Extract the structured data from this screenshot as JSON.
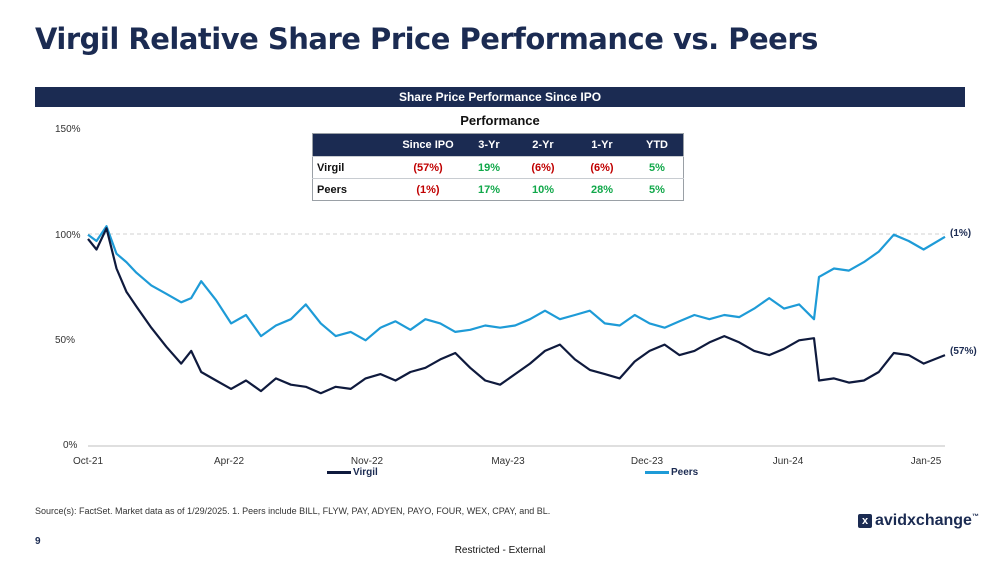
{
  "slide": {
    "title": "Virgil Relative Share Price Performance vs. Peers",
    "section_bar": "Share Price Performance Since IPO",
    "page_number": "9",
    "classification": "Restricted - External",
    "source": "Source(s): FactSet. Market data as of 1/29/2025. 1. Peers include BILL, FLYW, PAY, ADYEN, PAYO, FOUR, WEX, CPAY, and BL.",
    "logo_text": "avidxchange",
    "logo_mark": "x",
    "logo_trademark": "™"
  },
  "perf_table": {
    "title": "Performance",
    "headers": [
      "",
      "Since IPO",
      "3-Yr",
      "2-Yr",
      "1-Yr",
      "YTD"
    ],
    "rows": [
      {
        "label": "Virgil",
        "cells": [
          "(57%)",
          "19%",
          "(6%)",
          "(6%)",
          "5%"
        ]
      },
      {
        "label": "Peers",
        "cells": [
          "(1%)",
          "17%",
          "10%",
          "28%",
          "5%"
        ]
      }
    ],
    "negative_color": "#c00000",
    "positive_color": "#11a84a"
  },
  "chart_data": {
    "type": "line",
    "title": "",
    "xlabel": "",
    "ylabel": "",
    "ylim": [
      0,
      150
    ],
    "y_ticks": [
      "0%",
      "50%",
      "100%",
      "150%"
    ],
    "x_ticks": [
      "Oct-21",
      "Apr-22",
      "Nov-22",
      "May-23",
      "Dec-23",
      "Jun-24",
      "Jan-25"
    ],
    "legend_placement": "bottom",
    "grid": "dashed line at 100%",
    "series": [
      {
        "name": "Virgil",
        "color": "#0f1a3d",
        "end_label": "(57%)",
        "points": [
          [
            "2021-10-13",
            98
          ],
          [
            "2021-10-25",
            93
          ],
          [
            "2021-11-08",
            103
          ],
          [
            "2021-11-22",
            84
          ],
          [
            "2021-12-06",
            73
          ],
          [
            "2021-12-20",
            66
          ],
          [
            "2022-01-10",
            56
          ],
          [
            "2022-01-31",
            47
          ],
          [
            "2022-02-21",
            39
          ],
          [
            "2022-03-07",
            45
          ],
          [
            "2022-03-21",
            35
          ],
          [
            "2022-04-11",
            31
          ],
          [
            "2022-05-02",
            27
          ],
          [
            "2022-05-23",
            31
          ],
          [
            "2022-06-13",
            26
          ],
          [
            "2022-07-04",
            32
          ],
          [
            "2022-07-25",
            29
          ],
          [
            "2022-08-15",
            28
          ],
          [
            "2022-09-05",
            25
          ],
          [
            "2022-09-26",
            28
          ],
          [
            "2022-10-17",
            27
          ],
          [
            "2022-11-07",
            32
          ],
          [
            "2022-11-28",
            34
          ],
          [
            "2022-12-19",
            31
          ],
          [
            "2023-01-09",
            35
          ],
          [
            "2023-01-30",
            37
          ],
          [
            "2023-02-20",
            41
          ],
          [
            "2023-03-13",
            44
          ],
          [
            "2023-04-03",
            37
          ],
          [
            "2023-04-24",
            31
          ],
          [
            "2023-05-15",
            29
          ],
          [
            "2023-06-05",
            34
          ],
          [
            "2023-06-26",
            39
          ],
          [
            "2023-07-17",
            45
          ],
          [
            "2023-08-07",
            48
          ],
          [
            "2023-08-28",
            41
          ],
          [
            "2023-09-18",
            36
          ],
          [
            "2023-10-09",
            34
          ],
          [
            "2023-10-30",
            32
          ],
          [
            "2023-11-20",
            40
          ],
          [
            "2023-12-11",
            45
          ],
          [
            "2024-01-01",
            48
          ],
          [
            "2024-01-22",
            43
          ],
          [
            "2024-02-12",
            45
          ],
          [
            "2024-03-04",
            49
          ],
          [
            "2024-03-25",
            52
          ],
          [
            "2024-04-15",
            49
          ],
          [
            "2024-05-06",
            45
          ],
          [
            "2024-05-27",
            43
          ],
          [
            "2024-06-17",
            46
          ],
          [
            "2024-07-08",
            50
          ],
          [
            "2024-07-29",
            51
          ],
          [
            "2024-08-05",
            31
          ],
          [
            "2024-08-26",
            32
          ],
          [
            "2024-09-16",
            30
          ],
          [
            "2024-10-07",
            31
          ],
          [
            "2024-10-28",
            35
          ],
          [
            "2024-11-18",
            44
          ],
          [
            "2024-12-09",
            43
          ],
          [
            "2024-12-30",
            39
          ],
          [
            "2025-01-29",
            43
          ]
        ]
      },
      {
        "name": "Peers",
        "color": "#1e9bd7",
        "end_label": "(1%)",
        "points": [
          [
            "2021-10-13",
            100
          ],
          [
            "2021-10-25",
            97
          ],
          [
            "2021-11-08",
            104
          ],
          [
            "2021-11-22",
            91
          ],
          [
            "2021-12-06",
            87
          ],
          [
            "2021-12-20",
            82
          ],
          [
            "2022-01-10",
            76
          ],
          [
            "2022-01-31",
            72
          ],
          [
            "2022-02-21",
            68
          ],
          [
            "2022-03-07",
            70
          ],
          [
            "2022-03-21",
            78
          ],
          [
            "2022-04-11",
            69
          ],
          [
            "2022-05-02",
            58
          ],
          [
            "2022-05-23",
            62
          ],
          [
            "2022-06-13",
            52
          ],
          [
            "2022-07-04",
            57
          ],
          [
            "2022-07-25",
            60
          ],
          [
            "2022-08-15",
            67
          ],
          [
            "2022-09-05",
            58
          ],
          [
            "2022-09-26",
            52
          ],
          [
            "2022-10-17",
            54
          ],
          [
            "2022-11-07",
            50
          ],
          [
            "2022-11-28",
            56
          ],
          [
            "2022-12-19",
            59
          ],
          [
            "2023-01-09",
            55
          ],
          [
            "2023-01-30",
            60
          ],
          [
            "2023-02-20",
            58
          ],
          [
            "2023-03-13",
            54
          ],
          [
            "2023-04-03",
            55
          ],
          [
            "2023-04-24",
            57
          ],
          [
            "2023-05-15",
            56
          ],
          [
            "2023-06-05",
            57
          ],
          [
            "2023-06-26",
            60
          ],
          [
            "2023-07-17",
            64
          ],
          [
            "2023-08-07",
            60
          ],
          [
            "2023-08-28",
            62
          ],
          [
            "2023-09-18",
            64
          ],
          [
            "2023-10-09",
            58
          ],
          [
            "2023-10-30",
            57
          ],
          [
            "2023-11-20",
            62
          ],
          [
            "2023-12-11",
            58
          ],
          [
            "2024-01-01",
            56
          ],
          [
            "2024-01-22",
            59
          ],
          [
            "2024-02-12",
            62
          ],
          [
            "2024-03-04",
            60
          ],
          [
            "2024-03-25",
            62
          ],
          [
            "2024-04-15",
            61
          ],
          [
            "2024-05-06",
            65
          ],
          [
            "2024-05-27",
            70
          ],
          [
            "2024-06-17",
            65
          ],
          [
            "2024-07-08",
            67
          ],
          [
            "2024-07-29",
            60
          ],
          [
            "2024-08-05",
            80
          ],
          [
            "2024-08-26",
            84
          ],
          [
            "2024-09-16",
            83
          ],
          [
            "2024-10-07",
            87
          ],
          [
            "2024-10-28",
            92
          ],
          [
            "2024-11-18",
            100
          ],
          [
            "2024-12-09",
            97
          ],
          [
            "2024-12-30",
            93
          ],
          [
            "2025-01-29",
            99
          ]
        ]
      }
    ]
  }
}
